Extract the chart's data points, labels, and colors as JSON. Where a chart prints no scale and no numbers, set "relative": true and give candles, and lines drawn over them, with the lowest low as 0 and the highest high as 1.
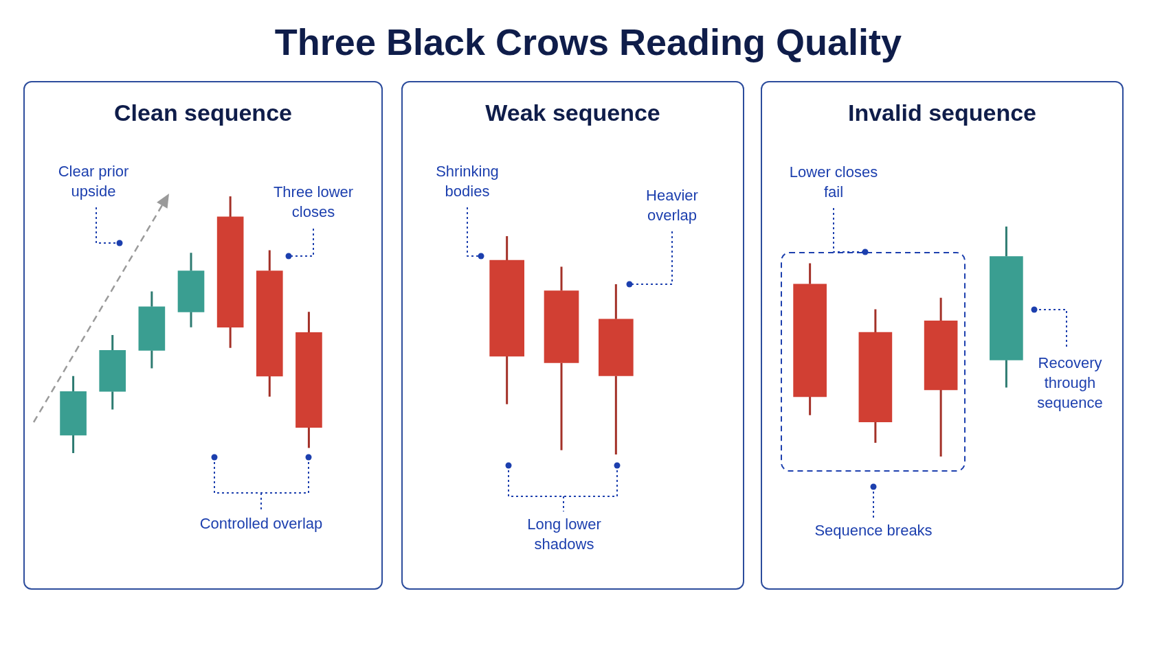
{
  "chart_data": [
    {
      "type": "candlestick",
      "title": "Three Black Crows Reading Quality",
      "subtitle": "Clean sequence",
      "categories": [
        null,
        null,
        null,
        null,
        null,
        null,
        null
      ],
      "relative": true,
      "ohlc": [
        [
          0.07,
          0.3,
          0,
          0.24
        ],
        [
          0.24,
          0.46,
          0.17,
          0.4
        ],
        [
          0.4,
          0.63,
          0.33,
          0.57
        ],
        [
          0.55,
          0.78,
          0.49,
          0.71
        ],
        [
          0.92,
          1,
          0.41,
          0.49
        ],
        [
          0.71,
          0.79,
          0.22,
          0.3
        ],
        [
          0.47,
          0.55,
          0.02,
          0.1
        ]
      ],
      "colors": [
        "#3a9e91",
        "#3a9e91",
        "#3a9e91",
        "#3a9e91",
        "#d13f33",
        "#d13f33",
        "#d13f33"
      ],
      "annotations": [
        "Clear prior upside",
        "Three lower closes",
        "Controlled overlap"
      ]
    },
    {
      "type": "candlestick",
      "subtitle": "Weak sequence",
      "categories": [
        null,
        null,
        null
      ],
      "relative": true,
      "ohlc": [
        [
          0.89,
          1,
          0.23,
          0.45
        ],
        [
          0.75,
          0.86,
          0.02,
          0.42
        ],
        [
          0.62,
          0.78,
          0,
          0.36
        ]
      ],
      "colors": [
        "#d13f33",
        "#d13f33",
        "#d13f33"
      ],
      "annotations": [
        "Shrinking bodies",
        "Heavier overlap",
        "Long lower shadows"
      ]
    },
    {
      "type": "candlestick",
      "subtitle": "Invalid sequence",
      "categories": [
        null,
        null,
        null,
        null
      ],
      "relative": true,
      "ohlc": [
        [
          0.75,
          0.84,
          0.18,
          0.26
        ],
        [
          0.54,
          0.64,
          0.06,
          0.15
        ],
        [
          0.59,
          0.69,
          0,
          0.29
        ],
        [
          0.42,
          1,
          0.3,
          0.87
        ]
      ],
      "colors": [
        "#d13f33",
        "#d13f33",
        "#d13f33",
        "#3a9e91"
      ],
      "annotations": [
        "Lower closes fail",
        "Sequence breaks",
        "Recovery through sequence"
      ]
    }
  ]
}
